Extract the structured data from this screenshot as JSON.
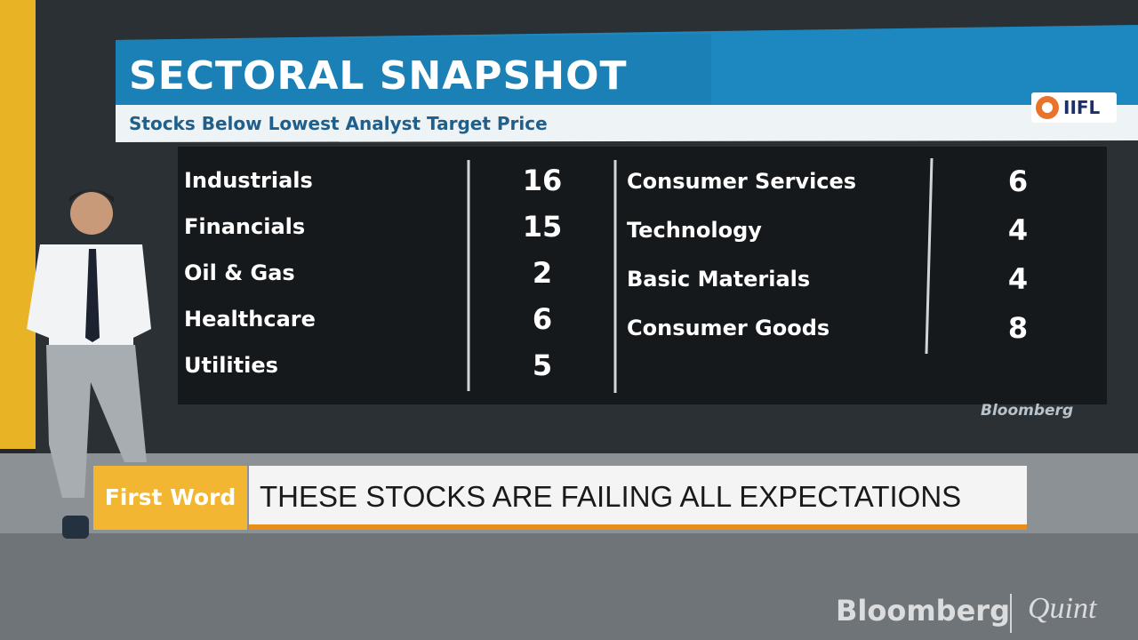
{
  "header": {
    "title": "SECTORAL SNAPSHOT",
    "subtitle": "Stocks Below Lowest Analyst Target Price",
    "logo": "IIFL"
  },
  "table": {
    "left": [
      [
        "Industrials",
        16
      ],
      [
        "Financials",
        15
      ],
      [
        "Oil & Gas",
        2
      ],
      [
        "Healthcare",
        6
      ],
      [
        "Utilities",
        5
      ]
    ],
    "right": [
      [
        "Consumer Services",
        6
      ],
      [
        "Technology",
        4
      ],
      [
        "Basic Materials",
        4
      ],
      [
        "Consumer Goods",
        8
      ]
    ]
  },
  "source": "Bloomberg",
  "lower_third": {
    "tag": "First Word",
    "headline": "THESE STOCKS ARE FAILING ALL EXPECTATIONS"
  },
  "watermark": {
    "brand": "Bloomberg",
    "partner": "Quint"
  }
}
